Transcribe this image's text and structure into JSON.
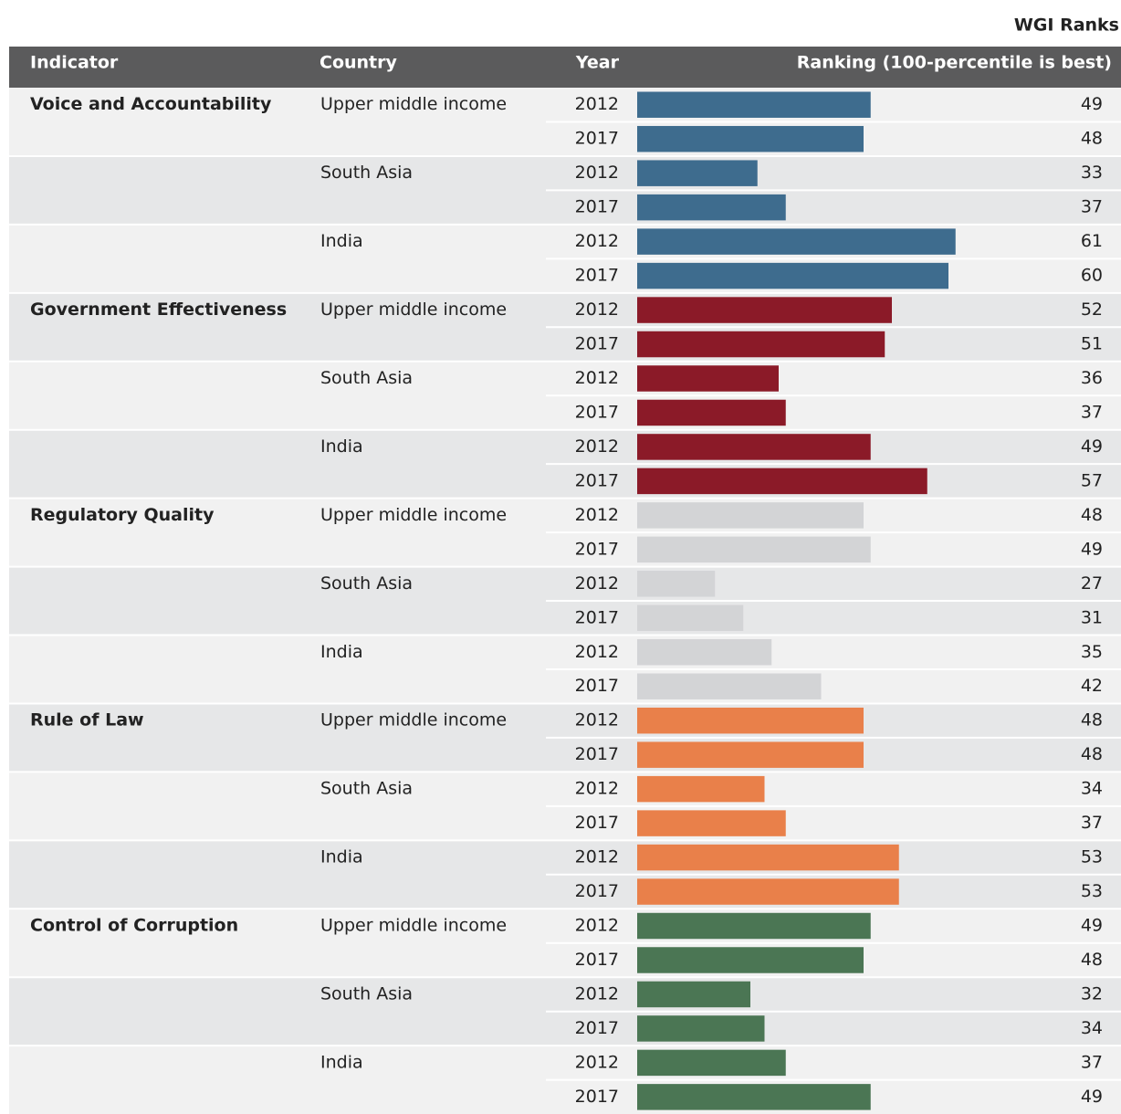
{
  "chart_data": {
    "type": "bar",
    "title": "WGI Ranks",
    "columns": [
      "Indicator",
      "Country",
      "Year",
      "Ranking (100-percentile is best)"
    ],
    "xlim": [
      16,
      84
    ],
    "indicators": [
      {
        "name": "Voice and Accountability",
        "color": "#3e6c8e",
        "countries": [
          {
            "name": "Upper middle income",
            "years": [
              2012,
              2017
            ],
            "values": [
              49,
              48
            ]
          },
          {
            "name": "South Asia",
            "years": [
              2012,
              2017
            ],
            "values": [
              33,
              37
            ]
          },
          {
            "name": "India",
            "years": [
              2012,
              2017
            ],
            "values": [
              61,
              60
            ]
          }
        ]
      },
      {
        "name": "Government Effectiveness",
        "color": "#8b1a28",
        "countries": [
          {
            "name": "Upper middle income",
            "years": [
              2012,
              2017
            ],
            "values": [
              52,
              51
            ]
          },
          {
            "name": "South Asia",
            "years": [
              2012,
              2017
            ],
            "values": [
              36,
              37
            ]
          },
          {
            "name": "India",
            "years": [
              2012,
              2017
            ],
            "values": [
              49,
              57
            ]
          }
        ]
      },
      {
        "name": "Regulatory Quality",
        "color": "#d3d4d6",
        "countries": [
          {
            "name": "Upper middle income",
            "years": [
              2012,
              2017
            ],
            "values": [
              48,
              49
            ]
          },
          {
            "name": "South Asia",
            "years": [
              2012,
              2017
            ],
            "values": [
              27,
              31
            ]
          },
          {
            "name": "India",
            "years": [
              2012,
              2017
            ],
            "values": [
              35,
              42
            ]
          }
        ]
      },
      {
        "name": "Rule of Law",
        "color": "#e9804a",
        "countries": [
          {
            "name": "Upper middle income",
            "years": [
              2012,
              2017
            ],
            "values": [
              48,
              48
            ]
          },
          {
            "name": "South Asia",
            "years": [
              2012,
              2017
            ],
            "values": [
              34,
              37
            ]
          },
          {
            "name": "India",
            "years": [
              2012,
              2017
            ],
            "values": [
              53,
              53
            ]
          }
        ]
      },
      {
        "name": "Control of Corruption",
        "color": "#4b7654",
        "countries": [
          {
            "name": "Upper middle income",
            "years": [
              2012,
              2017
            ],
            "values": [
              49,
              48
            ]
          },
          {
            "name": "South Asia",
            "years": [
              2012,
              2017
            ],
            "values": [
              32,
              34
            ]
          },
          {
            "name": "India",
            "years": [
              2012,
              2017
            ],
            "values": [
              37,
              49
            ]
          }
        ]
      }
    ]
  }
}
